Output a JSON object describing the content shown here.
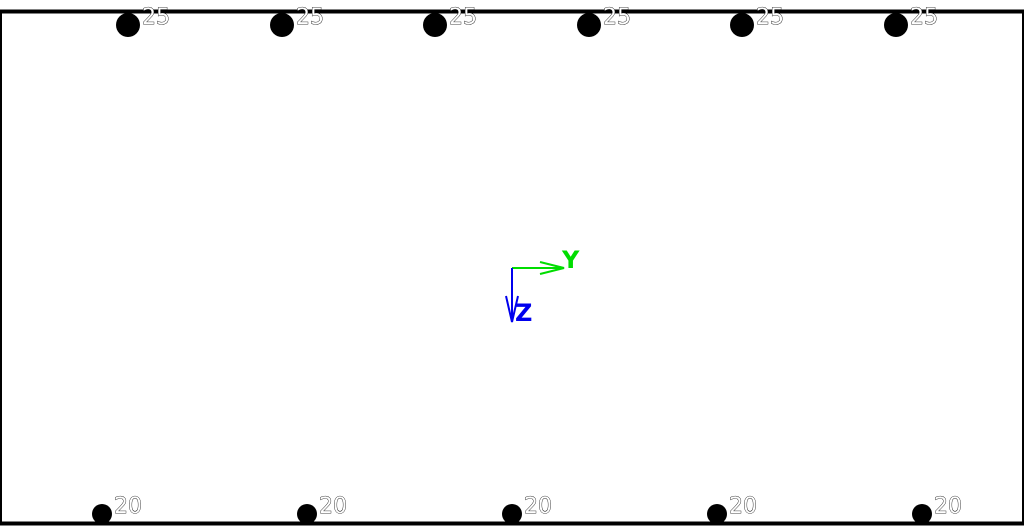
{
  "section": {
    "top_bars": [
      {
        "label": "25"
      },
      {
        "label": "25"
      },
      {
        "label": "25"
      },
      {
        "label": "25"
      },
      {
        "label": "25"
      },
      {
        "label": "25"
      }
    ],
    "bottom_bars": [
      {
        "label": "20"
      },
      {
        "label": "20"
      },
      {
        "label": "20"
      },
      {
        "label": "20"
      },
      {
        "label": "20"
      }
    ]
  },
  "axes": {
    "y": {
      "label": "Y",
      "color": "#00dd00"
    },
    "z": {
      "label": "Z",
      "color": "#0000ee"
    }
  },
  "colors": {
    "outline": "#000000",
    "bar": "#000000",
    "background": "#ffffff"
  }
}
